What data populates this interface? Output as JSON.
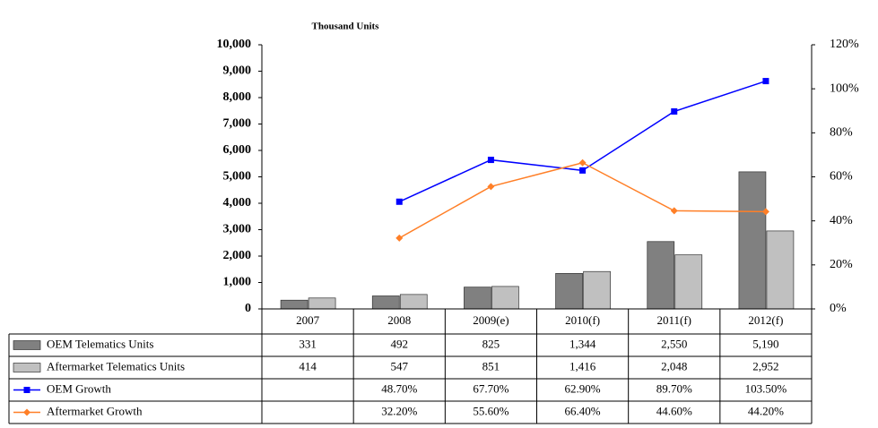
{
  "chart_data": {
    "type": "bar",
    "title": "Thousand Units",
    "categories": [
      "2007",
      "2008",
      "2009(e)",
      "2010(f)",
      "2011(f)",
      "2012(f)"
    ],
    "series": [
      {
        "name": "OEM Telematics Units",
        "type": "bar",
        "color": "#808080",
        "values": [
          331,
          492,
          825,
          1344,
          2550,
          5190
        ],
        "value_labels": [
          "331",
          "492",
          "825",
          "1,344",
          "2,550",
          "5,190"
        ]
      },
      {
        "name": "Aftermarket Telematics Units",
        "type": "bar",
        "color": "#c0c0c0",
        "values": [
          414,
          547,
          851,
          1416,
          2048,
          2952
        ],
        "value_labels": [
          "414",
          "547",
          "851",
          "1,416",
          "2,048",
          "2,952"
        ]
      },
      {
        "name": "OEM Growth",
        "type": "line",
        "axis": "y2",
        "color": "#0000ff",
        "values": [
          null,
          48.7,
          67.7,
          62.9,
          89.7,
          103.5
        ],
        "value_labels": [
          null,
          "48.70%",
          "67.70%",
          "62.90%",
          "89.70%",
          "103.50%"
        ]
      },
      {
        "name": "Aftermarket Growth",
        "type": "line",
        "axis": "y2",
        "color": "#ff7f27",
        "values": [
          null,
          32.2,
          55.6,
          66.4,
          44.6,
          44.2
        ],
        "value_labels": [
          null,
          "32.20%",
          "55.60%",
          "66.40%",
          "44.60%",
          "44.20%"
        ]
      }
    ],
    "ylim": [
      0,
      10000
    ],
    "yticks": [
      0,
      {
        "value": 1000,
        "label": "1,000"
      },
      {
        "value": 2000,
        "label": "2,000"
      },
      {
        "value": 3000,
        "label": "3,000"
      },
      {
        "value": 4000,
        "label": "4,000"
      },
      {
        "value": 5000,
        "label": "5,000"
      },
      {
        "value": 6000,
        "label": "6,000"
      },
      {
        "value": 7000,
        "label": "7,000"
      },
      {
        "value": 8000,
        "label": "8,000"
      },
      {
        "value": 9000,
        "label": "9,000"
      },
      {
        "value": 10000,
        "label": "10,000"
      }
    ],
    "y2lim": [
      0,
      120
    ],
    "y2ticks": [
      {
        "value": 0,
        "label": "0%"
      },
      {
        "value": 20,
        "label": "20%"
      },
      {
        "value": 40,
        "label": "40%"
      },
      {
        "value": 60,
        "label": "60%"
      },
      {
        "value": 80,
        "label": "80%"
      },
      {
        "value": 100,
        "label": "100%"
      },
      {
        "value": 120,
        "label": "120%"
      }
    ]
  }
}
